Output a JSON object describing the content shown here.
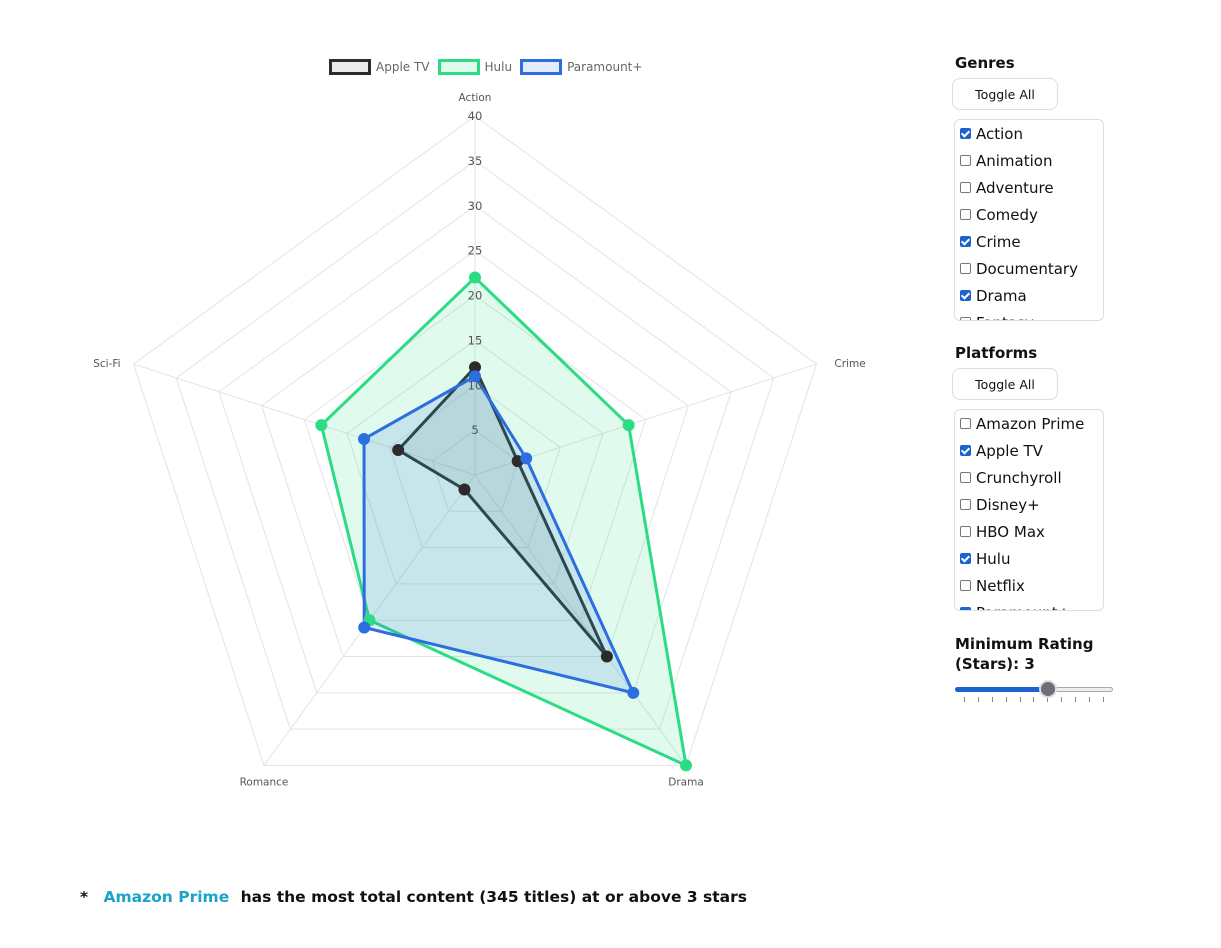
{
  "chart_data": {
    "type": "radar",
    "axes": [
      "Action",
      "Crime",
      "Drama",
      "Romance",
      "Sci-Fi"
    ],
    "r_ticks": [
      "5",
      "10",
      "15",
      "20",
      "25",
      "30",
      "35",
      "40"
    ],
    "r_range": [
      0,
      40
    ],
    "grid": true,
    "legend_position": "top",
    "series": [
      {
        "name": "Apple TV",
        "values": [
          12,
          5,
          25,
          2,
          9
        ],
        "color": "#2b2b2b",
        "fill": "rgba(140,140,140,0.18)"
      },
      {
        "name": "Hulu",
        "values": [
          22,
          18,
          40,
          20,
          18
        ],
        "color": "#2bdc85",
        "fill": "rgba(43,220,133,0.14)"
      },
      {
        "name": "Paramount+",
        "values": [
          11,
          6,
          30,
          21,
          13
        ],
        "color": "#2c6ee0",
        "fill": "rgba(44,110,224,0.14)"
      }
    ]
  },
  "genres": {
    "title": "Genres",
    "toggle_label": "Toggle All",
    "items": [
      {
        "label": "Action",
        "checked": true
      },
      {
        "label": "Animation",
        "checked": false
      },
      {
        "label": "Adventure",
        "checked": false
      },
      {
        "label": "Comedy",
        "checked": false
      },
      {
        "label": "Crime",
        "checked": true
      },
      {
        "label": "Documentary",
        "checked": false
      },
      {
        "label": "Drama",
        "checked": true
      },
      {
        "label": "Fantasy",
        "checked": false
      }
    ]
  },
  "platforms": {
    "title": "Platforms",
    "toggle_label": "Toggle All",
    "items": [
      {
        "label": "Amazon Prime",
        "checked": false
      },
      {
        "label": "Apple TV",
        "checked": true
      },
      {
        "label": "Crunchyroll",
        "checked": false
      },
      {
        "label": "Disney+",
        "checked": false
      },
      {
        "label": "HBO Max",
        "checked": false
      },
      {
        "label": "Hulu",
        "checked": true
      },
      {
        "label": "Netflix",
        "checked": false
      },
      {
        "label": "Paramount+",
        "checked": true
      }
    ]
  },
  "rating": {
    "label": "Minimum Rating (Stars): 3",
    "value": 3,
    "min": 0,
    "max": 5,
    "step": 0.5
  },
  "footnote": {
    "star": "*",
    "platform": "Amazon Prime",
    "text": "has the most total content (345 titles) at or above 3 stars"
  }
}
